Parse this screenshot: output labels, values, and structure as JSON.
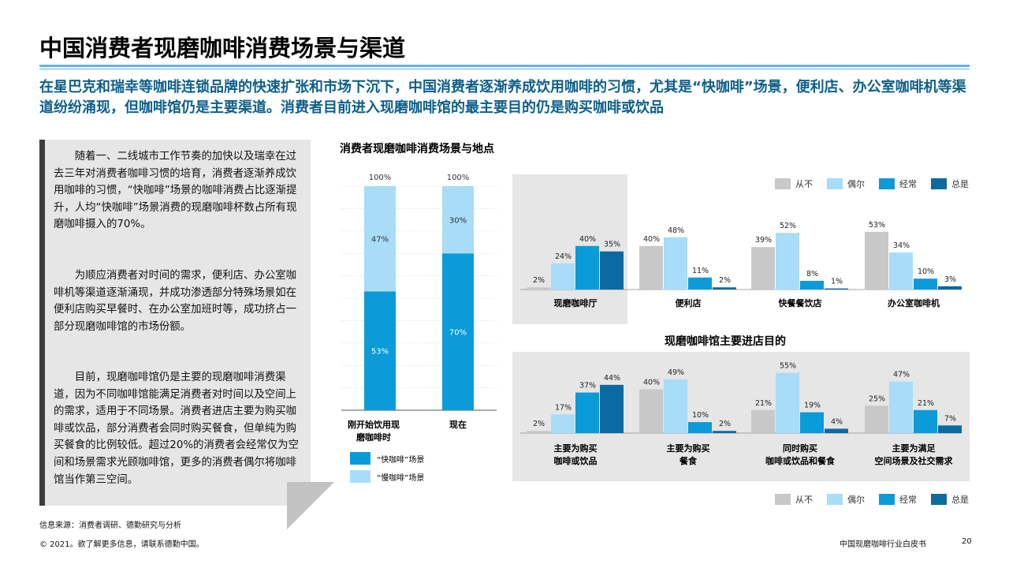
{
  "header": {
    "title": "中国消费者现磨咖啡消费场景与渠道",
    "lead": "在星巴克和瑞幸等咖啡连锁品牌的快速扩张和市场下沉下，中国消费者逐渐养成饮用咖啡的习惯，尤其是“快咖啡”场景，便利店、办公室咖啡机等渠道纷纷涌现，但咖啡馆仍是主要渠道。消费者目前进入现磨咖啡馆的最主要目的仍是购买咖啡或饮品"
  },
  "sidebar": {
    "p1": "随着一、二线城市工作节奏的加快以及瑞幸在过去三年对消费者咖啡习惯的培育，消费者逐渐养成饮用咖啡的习惯，“快咖啡”场景的咖啡消费占比逐渐提升，人均“快咖啡”场景消费的现磨咖啡杯数占所有现磨咖啡摄入的70%。",
    "p2": "为顺应消费者对时间的需求，便利店、办公室咖啡机等渠道逐渐涌现，并成功渗透部分特殊场景如在便利店购买早餐时、在办公室加班时等，成功挤占一部分现磨咖啡馆的市场份额。",
    "p3": "目前，现磨咖啡馆仍是主要的现磨咖啡消费渠道，因为不同咖啡馆能满足消费者对时间以及空间上的需求，适用于不同场景。消费者进店主要为购买咖啡或饮品，部分消费者会同时购买餐食，但单纯为购买餐食的比例较低。超过20%的消费者会经常仅为空间和场景需求光顾咖啡馆，更多的消费者偶尔将咖啡馆当作第三空间。"
  },
  "footer": {
    "source": "信息来源：消费者调研、德勤研究与分析",
    "copyright": "© 2021。欲了解更多信息，请联系德勤中国。",
    "doc": "中国现磨咖啡行业白皮书",
    "page": "20"
  },
  "colors": {
    "never": "#c8c8c8",
    "sometimes": "#a8dcf7",
    "often": "#0a9bd8",
    "always": "#0d6aa0",
    "rule": "#62b5e5",
    "lead": "#0d5f8a"
  },
  "legend": {
    "never": "从不",
    "sometimes": "偶尔",
    "often": "经常",
    "always": "总是"
  },
  "chart_data": [
    {
      "type": "bar",
      "stacked": true,
      "title": "消费者现磨咖啡消费场景与地点",
      "categories": [
        "刚开始饮用现磨咖啡时",
        "现在"
      ],
      "series": [
        {
          "name": "“快咖啡”场景",
          "values": [
            53,
            70
          ],
          "labels": [
            "53%",
            "70%"
          ]
        },
        {
          "name": "“慢咖啡”场景",
          "values": [
            47,
            30
          ],
          "labels": [
            "47%",
            "30%"
          ]
        }
      ],
      "totals": [
        "100%",
        "100%"
      ],
      "ylim": [
        0,
        100
      ]
    },
    {
      "type": "bar",
      "title": "",
      "categories": [
        "现磨咖啡厅",
        "便利店",
        "快餐餐饮店",
        "办公室咖啡机"
      ],
      "series": [
        {
          "name": "从不",
          "values": [
            2,
            40,
            39,
            53
          ],
          "labels": [
            "2%",
            "40%",
            "39%",
            "53%"
          ]
        },
        {
          "name": "偶尔",
          "values": [
            24,
            48,
            52,
            34
          ],
          "labels": [
            "24%",
            "48%",
            "52%",
            "34%"
          ]
        },
        {
          "name": "经常",
          "values": [
            40,
            11,
            8,
            10
          ],
          "labels": [
            "40%",
            "11%",
            "8%",
            "10%"
          ]
        },
        {
          "name": "总是",
          "values": [
            35,
            2,
            1,
            3
          ],
          "labels": [
            "35%",
            "2%",
            "1%",
            "3%"
          ]
        }
      ],
      "ylim": [
        0,
        60
      ]
    },
    {
      "type": "bar",
      "title": "现磨咖啡馆主要进店目的",
      "categories": [
        "主要为购买咖啡或饮品",
        "主要为购买餐食",
        "同时购买咖啡或饮品和餐食",
        "主要为满足空间场景及社交需求"
      ],
      "category_lines": [
        [
          "主要为购买",
          "咖啡或饮品"
        ],
        [
          "主要为购买",
          "餐食"
        ],
        [
          "同时购买",
          "咖啡或饮品和餐食"
        ],
        [
          "主要为满足",
          "空间场景及社交需求"
        ]
      ],
      "series": [
        {
          "name": "从不",
          "values": [
            2,
            40,
            21,
            25
          ],
          "labels": [
            "2%",
            "40%",
            "21%",
            "25%"
          ]
        },
        {
          "name": "偶尔",
          "values": [
            17,
            49,
            55,
            47
          ],
          "labels": [
            "17%",
            "49%",
            "55%",
            "47%"
          ]
        },
        {
          "name": "经常",
          "values": [
            37,
            10,
            19,
            21
          ],
          "labels": [
            "37%",
            "10%",
            "19%",
            "21%"
          ]
        },
        {
          "name": "总是",
          "values": [
            44,
            2,
            4,
            7
          ],
          "labels": [
            "44%",
            "2%",
            "4%",
            "7%"
          ]
        }
      ],
      "ylim": [
        0,
        60
      ]
    }
  ]
}
